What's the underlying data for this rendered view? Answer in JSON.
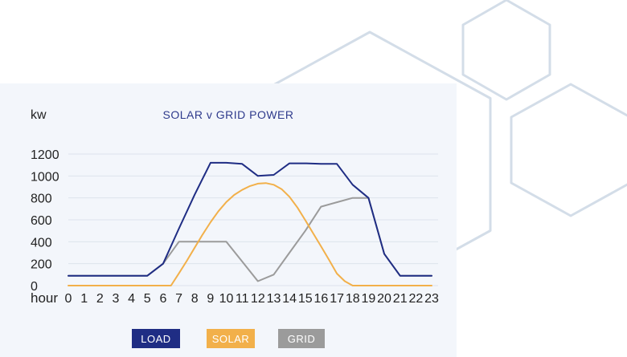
{
  "colors": {
    "load": "#1f2d84",
    "solar": "#f2b04a",
    "grid": "#9b9b9b",
    "title": "#2e3a8c",
    "hex_outline": "#d3dde8",
    "card_bg": "#f3f6fb",
    "gridline": "#dde3ec"
  },
  "chart_data": {
    "type": "line",
    "title": "SOLAR v GRID POWER",
    "ylabel": "kw",
    "xlabel": "hour",
    "ylim": [
      0,
      1200
    ],
    "yticks": [
      0,
      200,
      400,
      600,
      800,
      1000,
      1200
    ],
    "x": [
      0,
      1,
      2,
      3,
      4,
      5,
      6,
      7,
      8,
      9,
      10,
      11,
      12,
      13,
      14,
      15,
      16,
      17,
      18,
      19,
      20,
      21,
      22,
      23
    ],
    "series": [
      {
        "name": "LOAD",
        "color": "#1f2d84",
        "x": [
          0,
          1,
          2,
          3,
          4,
          5,
          6,
          7,
          8,
          9,
          10,
          11,
          12,
          13,
          14,
          15,
          16,
          17,
          18,
          19,
          20,
          21,
          22,
          23
        ],
        "values": [
          90,
          90,
          90,
          90,
          90,
          90,
          200,
          520,
          830,
          1120,
          1120,
          1110,
          1000,
          1010,
          1115,
          1115,
          1110,
          1110,
          920,
          800,
          290,
          90,
          90,
          90
        ]
      },
      {
        "name": "SOLAR",
        "color": "#f2b04a",
        "x": [
          0,
          1,
          2,
          3,
          4,
          5,
          6,
          6.5,
          7,
          7.5,
          8,
          8.5,
          9,
          9.5,
          10,
          10.5,
          11,
          11.5,
          12,
          12.5,
          13,
          13.5,
          14,
          14.5,
          15,
          15.5,
          16,
          16.5,
          17,
          17.5,
          18,
          19,
          20,
          21,
          22,
          23
        ],
        "values": [
          0,
          0,
          0,
          0,
          0,
          0,
          0,
          0,
          112,
          226,
          346,
          465,
          578,
          678,
          762,
          827,
          873,
          908,
          930,
          935,
          920,
          880,
          810,
          712,
          596,
          476,
          358,
          235,
          110,
          40,
          0,
          0,
          0,
          0,
          0,
          0
        ]
      },
      {
        "name": "GRID",
        "color": "#9b9b9b",
        "x": [
          0,
          1,
          2,
          3,
          4,
          5,
          6,
          7,
          8,
          9,
          10,
          11,
          12,
          13,
          14,
          15,
          16,
          17,
          18,
          19,
          20,
          21,
          22,
          23
        ],
        "values": [
          90,
          90,
          90,
          90,
          90,
          90,
          200,
          400,
          400,
          400,
          400,
          220,
          40,
          100,
          300,
          500,
          720,
          760,
          800,
          800,
          290,
          90,
          90,
          90
        ]
      }
    ],
    "grid": true,
    "legend_position": "bottom"
  },
  "legend": [
    {
      "label": "LOAD",
      "color": "#1f2d84"
    },
    {
      "label": "SOLAR",
      "color": "#f2b04a"
    },
    {
      "label": "GRID",
      "color": "#9b9b9b"
    }
  ]
}
